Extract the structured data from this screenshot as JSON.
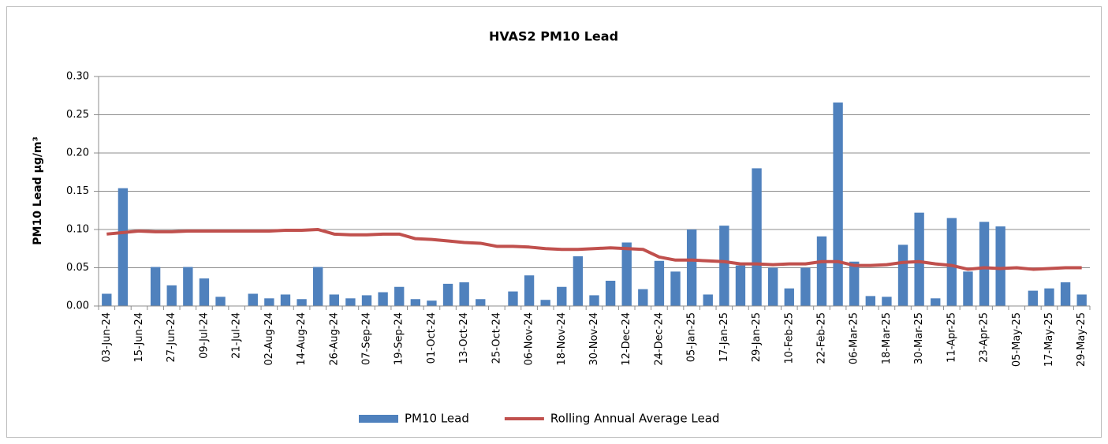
{
  "chart_data": {
    "type": "bar_line",
    "title": "HVAS2 PM10 Lead",
    "y_label": "PM10 Lead µg/m³",
    "categories": [
      "03-Jun-24",
      null,
      "15-Jun-24",
      null,
      "27-Jun-24",
      null,
      "09-Jul-24",
      null,
      "21-Jul-24",
      null,
      "02-Aug-24",
      null,
      "14-Aug-24",
      null,
      "26-Aug-24",
      null,
      "07-Sep-24",
      null,
      "19-Sep-24",
      null,
      "01-Oct-24",
      null,
      "13-Oct-24",
      null,
      "25-Oct-24",
      null,
      "06-Nov-24",
      null,
      "18-Nov-24",
      null,
      "30-Nov-24",
      null,
      "12-Dec-24",
      null,
      "24-Dec-24",
      null,
      "05-Jan-25",
      null,
      "17-Jan-25",
      null,
      "29-Jan-25",
      null,
      "10-Feb-25",
      null,
      "22-Feb-25",
      null,
      "06-Mar-25",
      null,
      "18-Mar-25",
      null,
      "30-Mar-25",
      null,
      "11-Apr-25",
      null,
      "23-Apr-25",
      null,
      "05-May-25",
      null,
      "17-May-25",
      null,
      "29-May-25"
    ],
    "series": [
      {
        "name": "PM10 Lead",
        "kind": "bar",
        "color": "#4f81bd",
        "values": [
          0.016,
          0.154,
          null,
          0.051,
          0.027,
          0.051,
          0.036,
          0.012,
          null,
          0.016,
          0.01,
          0.015,
          0.009,
          0.051,
          0.015,
          0.01,
          0.014,
          0.018,
          0.025,
          0.009,
          0.007,
          0.029,
          0.031,
          0.009,
          null,
          0.019,
          0.04,
          0.008,
          0.025,
          0.065,
          0.014,
          0.033,
          0.083,
          0.022,
          0.059,
          0.045,
          0.1,
          0.015,
          0.105,
          0.053,
          0.18,
          0.05,
          0.023,
          0.05,
          0.091,
          0.266,
          0.058,
          0.013,
          0.012,
          0.08,
          0.122,
          0.01,
          0.115,
          0.045,
          0.11,
          0.104,
          null,
          0.02,
          0.023,
          0.031,
          0.015
        ]
      },
      {
        "name": "Rolling Annual Average Lead",
        "kind": "line",
        "color": "#c0504d",
        "values": [
          0.094,
          0.096,
          0.098,
          0.097,
          0.097,
          0.098,
          0.098,
          0.098,
          0.098,
          0.098,
          0.098,
          0.099,
          0.099,
          0.1,
          0.094,
          0.093,
          0.093,
          0.094,
          0.094,
          0.088,
          0.087,
          0.085,
          0.083,
          0.082,
          0.078,
          0.078,
          0.077,
          0.075,
          0.074,
          0.074,
          0.075,
          0.076,
          0.075,
          0.074,
          0.064,
          0.06,
          0.06,
          0.059,
          0.058,
          0.055,
          0.055,
          0.054,
          0.055,
          0.055,
          0.058,
          0.058,
          0.053,
          0.053,
          0.054,
          0.057,
          0.058,
          0.055,
          0.053,
          0.048,
          0.05,
          0.049,
          0.05,
          0.048,
          0.049,
          0.05,
          0.05
        ]
      }
    ],
    "ylim": [
      0,
      0.3
    ],
    "yticks": [
      {
        "value": 0,
        "label": "0.00"
      },
      0.05,
      {
        "value": 0.1,
        "label": "0.10"
      },
      0.15,
      {
        "value": 0.2,
        "label": "0.20"
      },
      0.25,
      {
        "value": 0.3,
        "label": "0.30"
      }
    ],
    "grid": true,
    "legend": "bottom"
  }
}
